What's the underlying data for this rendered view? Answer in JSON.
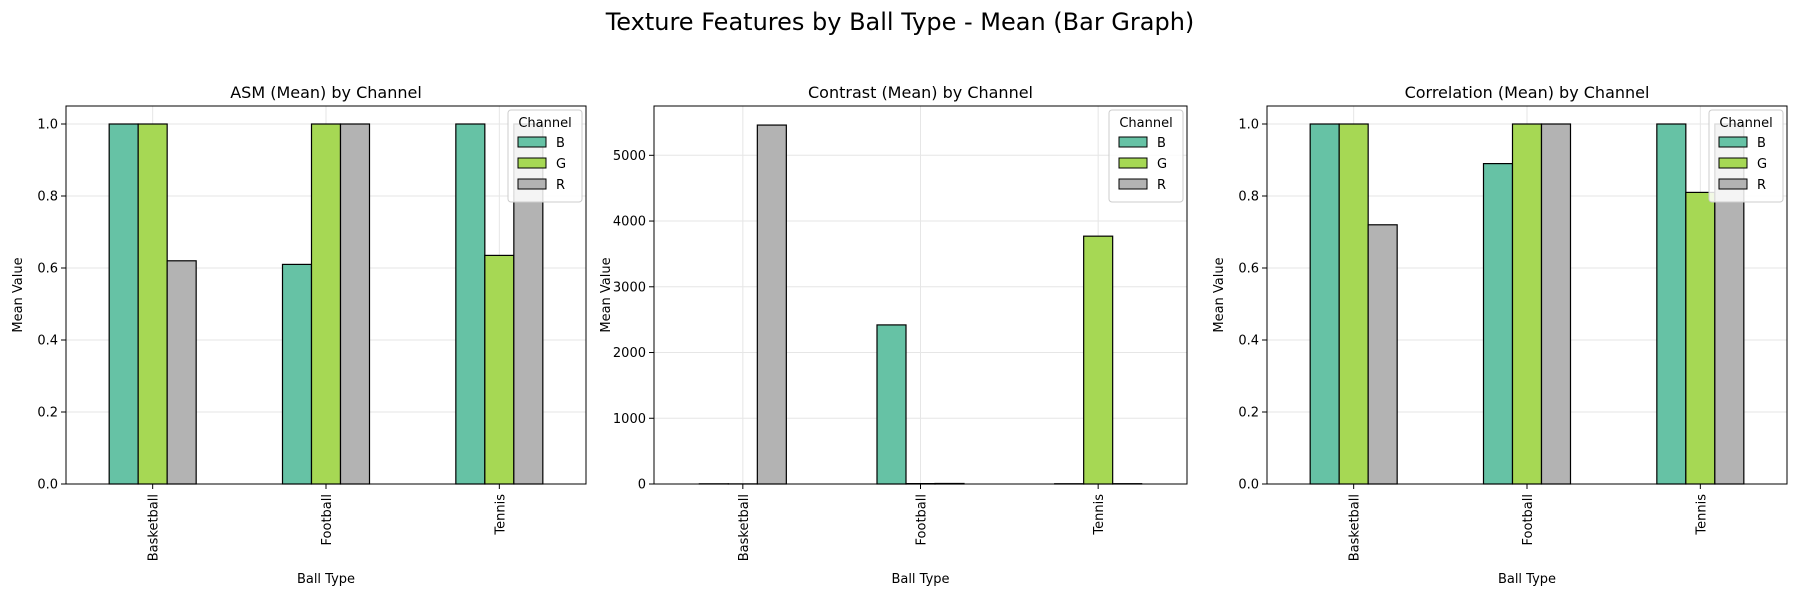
{
  "figure_title": "Texture Features by Ball Type - Mean (Bar Graph)",
  "colors": {
    "B": "#66c2a5",
    "G": "#a6d854",
    "R": "#b3b3b3",
    "grid": "#e6e6e6",
    "edge": "#000000"
  },
  "chart_data": [
    {
      "type": "bar",
      "title": "ASM (Mean) by Channel",
      "xlabel": "Ball Type",
      "ylabel": "Mean Value",
      "categories": [
        "Basketball",
        "Football",
        "Tennis"
      ],
      "ylim": [
        0,
        1.05
      ],
      "yticks": [
        0.0,
        0.2,
        0.4,
        0.6,
        0.8,
        1.0
      ],
      "ytick_labels": [
        "0.0",
        "0.2",
        "0.4",
        "0.6",
        "0.8",
        "1.0"
      ],
      "legend_title": "Channel",
      "legend_position": "top-right",
      "grid": true,
      "series": [
        {
          "name": "B",
          "values": [
            1.0,
            0.61,
            1.0
          ]
        },
        {
          "name": "G",
          "values": [
            1.0,
            1.0,
            0.635
          ]
        },
        {
          "name": "R",
          "values": [
            0.62,
            1.0,
            1.0
          ]
        }
      ]
    },
    {
      "type": "bar",
      "title": "Contrast (Mean) by Channel",
      "xlabel": "Ball Type",
      "ylabel": "Mean Value",
      "categories": [
        "Basketball",
        "Football",
        "Tennis"
      ],
      "ylim": [
        0,
        5750
      ],
      "yticks": [
        0,
        1000,
        2000,
        3000,
        4000,
        5000
      ],
      "ytick_labels": [
        "0",
        "1000",
        "2000",
        "3000",
        "4000",
        "5000"
      ],
      "legend_title": "Channel",
      "legend_position": "top-right",
      "grid": true,
      "series": [
        {
          "name": "B",
          "values": [
            3,
            2420,
            4
          ]
        },
        {
          "name": "G",
          "values": [
            2,
            6,
            3770
          ]
        },
        {
          "name": "R",
          "values": [
            5460,
            8,
            5
          ]
        }
      ]
    },
    {
      "type": "bar",
      "title": "Correlation (Mean) by Channel",
      "xlabel": "Ball Type",
      "ylabel": "Mean Value",
      "categories": [
        "Basketball",
        "Football",
        "Tennis"
      ],
      "ylim": [
        0,
        1.05
      ],
      "yticks": [
        0.0,
        0.2,
        0.4,
        0.6,
        0.8,
        1.0
      ],
      "ytick_labels": [
        "0.0",
        "0.2",
        "0.4",
        "0.6",
        "0.8",
        "1.0"
      ],
      "legend_title": "Channel",
      "legend_position": "top-right",
      "grid": true,
      "series": [
        {
          "name": "B",
          "values": [
            1.0,
            0.89,
            1.0
          ]
        },
        {
          "name": "G",
          "values": [
            1.0,
            1.0,
            0.81
          ]
        },
        {
          "name": "R",
          "values": [
            0.72,
            1.0,
            1.0
          ]
        }
      ]
    }
  ]
}
